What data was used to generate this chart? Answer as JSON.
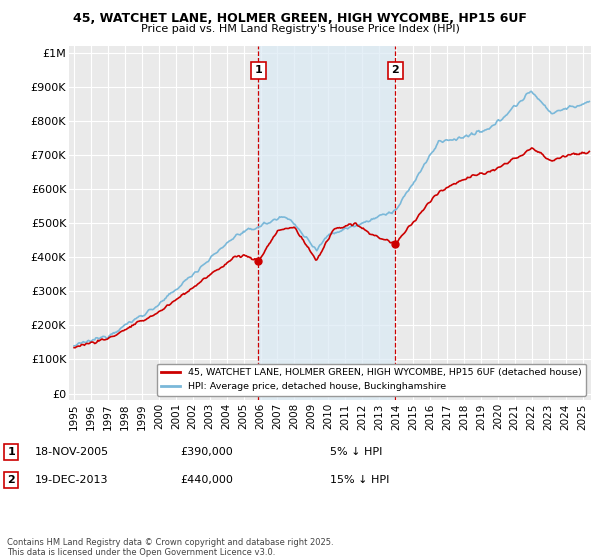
{
  "title": "45, WATCHET LANE, HOLMER GREEN, HIGH WYCOMBE, HP15 6UF",
  "subtitle": "Price paid vs. HM Land Registry's House Price Index (HPI)",
  "ylabel_ticks": [
    "£0",
    "£100K",
    "£200K",
    "£300K",
    "£400K",
    "£500K",
    "£600K",
    "£700K",
    "£800K",
    "£900K",
    "£1M"
  ],
  "ytick_values": [
    0,
    100000,
    200000,
    300000,
    400000,
    500000,
    600000,
    700000,
    800000,
    900000,
    1000000
  ],
  "ylim": [
    -20000,
    1020000
  ],
  "xlim_start": 1994.7,
  "xlim_end": 2025.5,
  "sale1_x": 2005.88,
  "sale1_y": 390000,
  "sale2_x": 2013.96,
  "sale2_y": 440000,
  "vline1_x": 2005.88,
  "vline2_x": 2013.96,
  "hpi_color": "#7ab8d9",
  "price_color": "#cc0000",
  "vline_color": "#cc0000",
  "shade_color": "#daeaf5",
  "legend_price_label": "45, WATCHET LANE, HOLMER GREEN, HIGH WYCOMBE, HP15 6UF (detached house)",
  "legend_hpi_label": "HPI: Average price, detached house, Buckinghamshire",
  "annotation1_date": "18-NOV-2005",
  "annotation1_price": "£390,000",
  "annotation1_hpi": "5% ↓ HPI",
  "annotation2_date": "19-DEC-2013",
  "annotation2_price": "£440,000",
  "annotation2_hpi": "15% ↓ HPI",
  "footer": "Contains HM Land Registry data © Crown copyright and database right 2025.\nThis data is licensed under the Open Government Licence v3.0.",
  "background_color": "#ffffff",
  "plot_bg_color": "#eaeaea",
  "grid_color": "#ffffff"
}
